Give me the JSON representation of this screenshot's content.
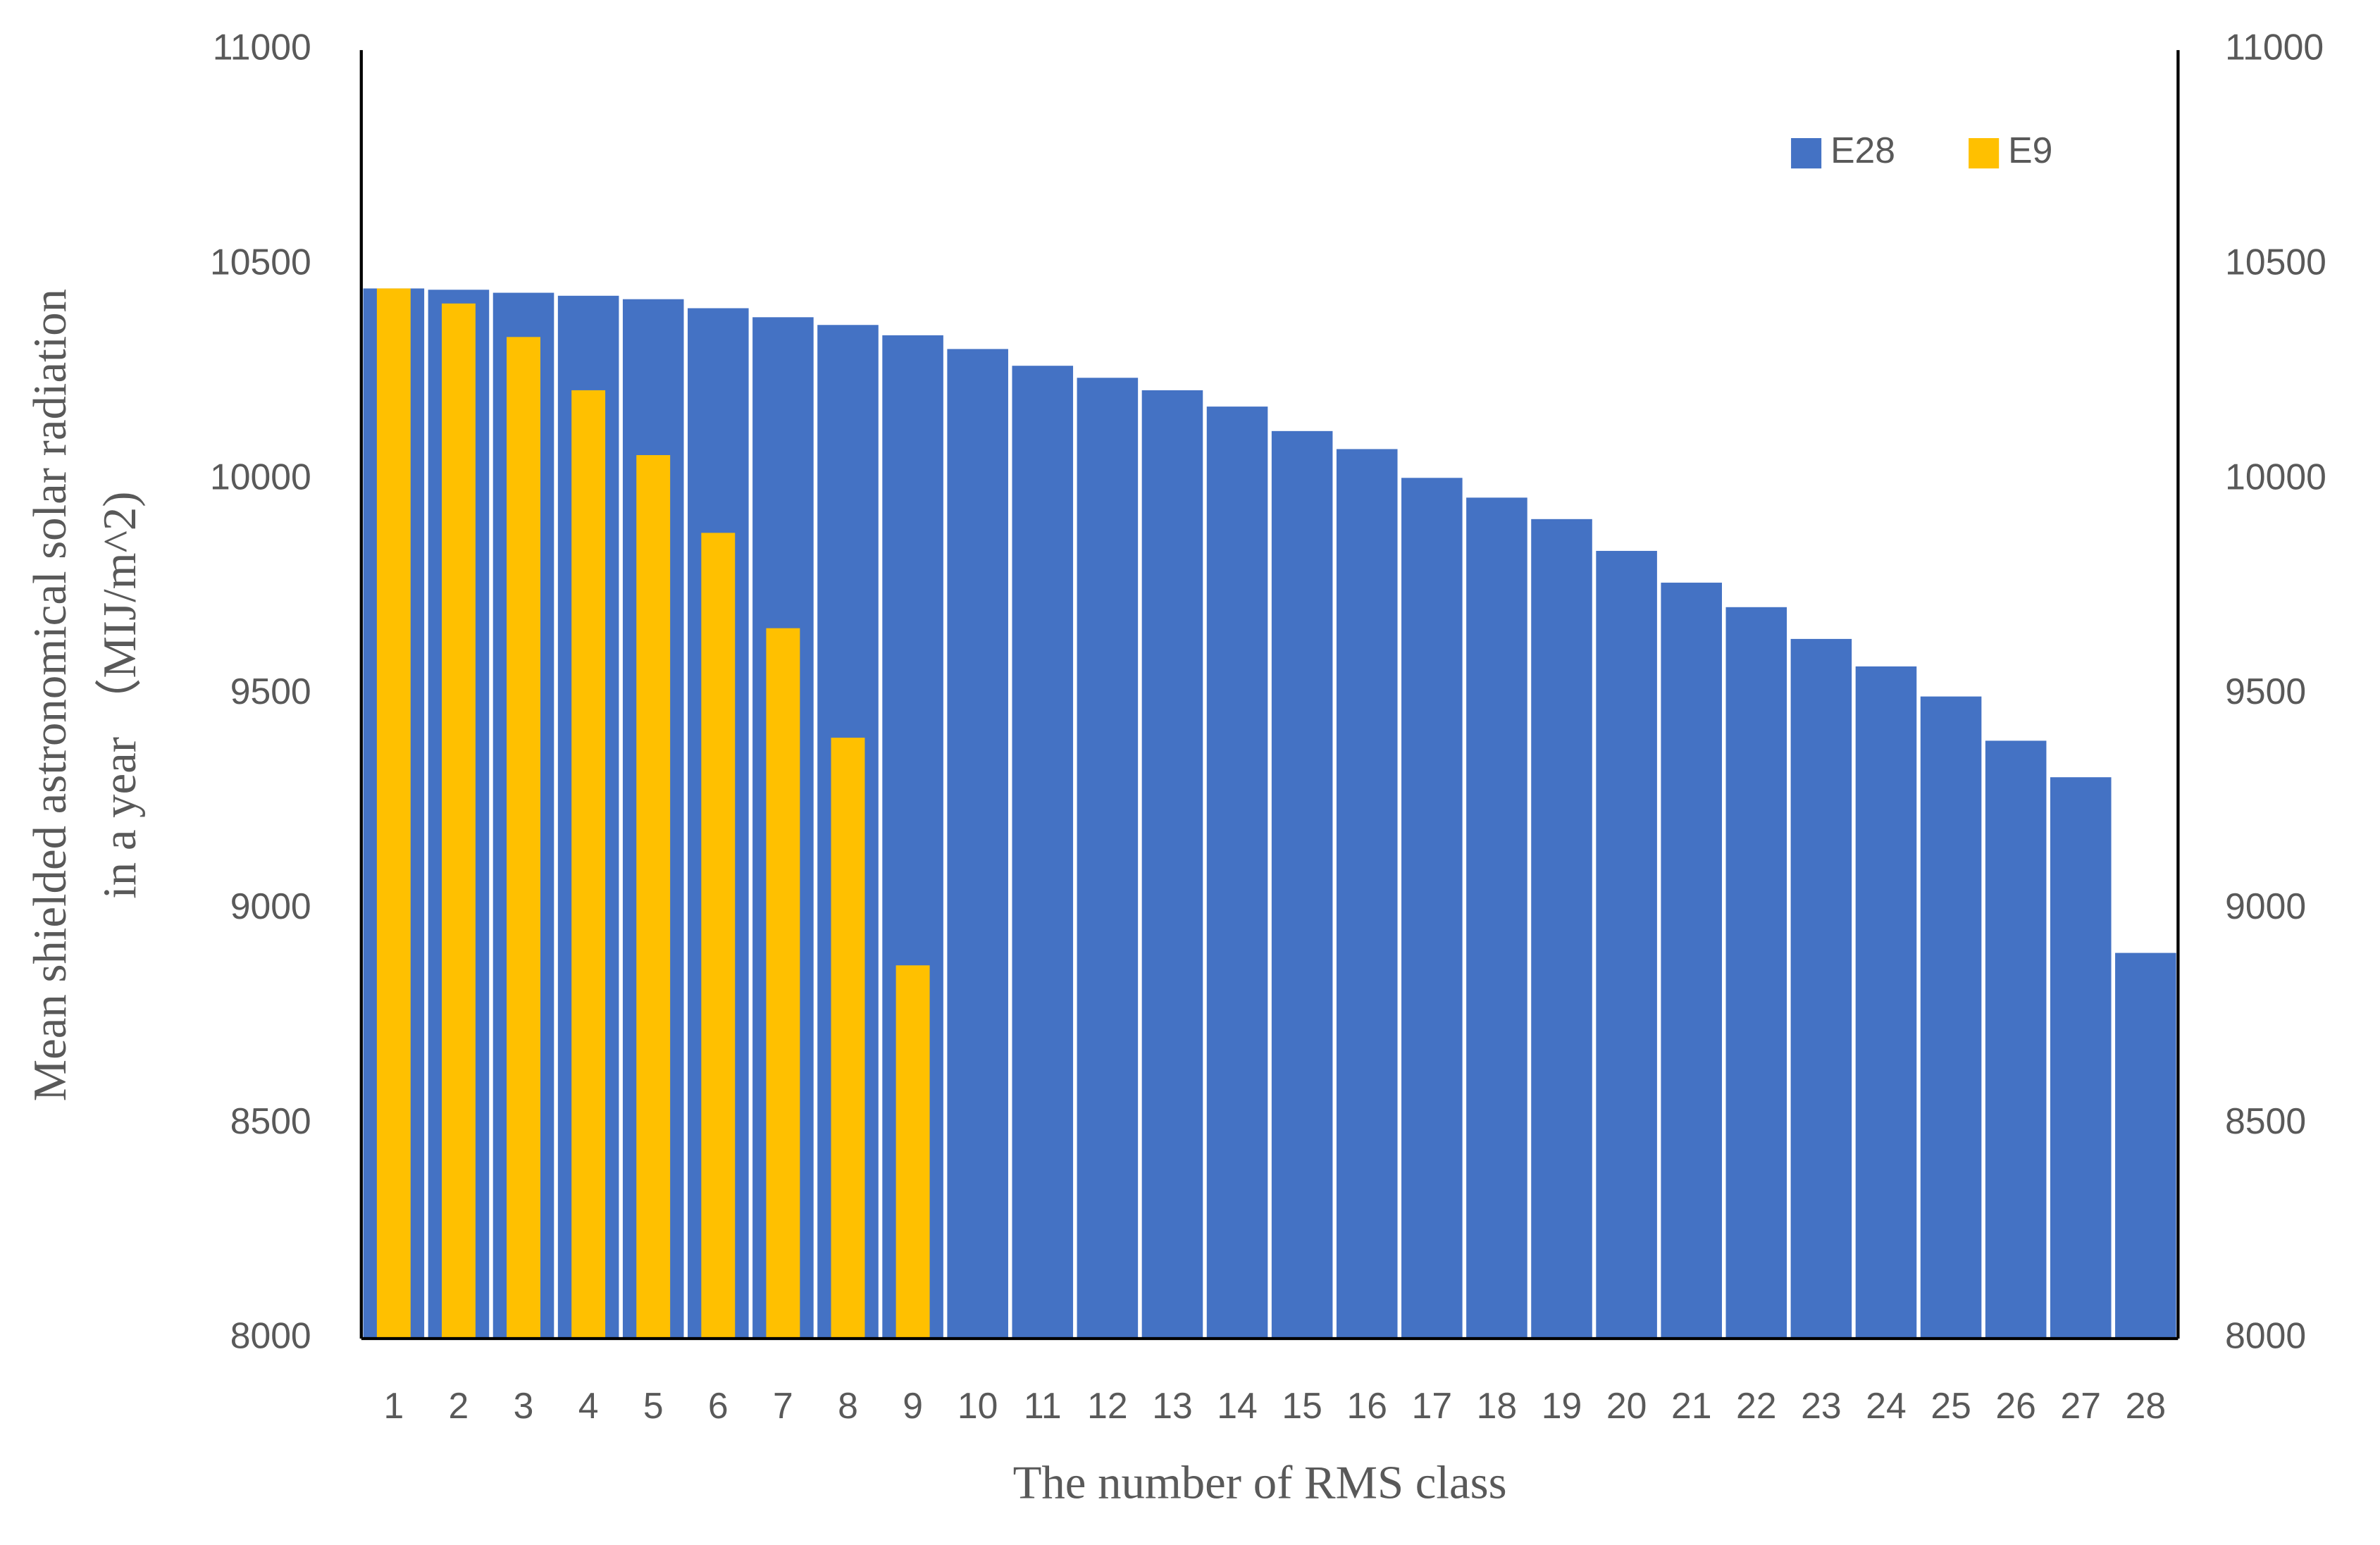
{
  "chart_data": {
    "type": "bar",
    "xlabel": "The number of RMS class",
    "ylabel": [
      "Mean shielded astronomical solar radiation",
      "in a year （MIJ/m^2)"
    ],
    "categories": [
      "1",
      "2",
      "3",
      "4",
      "5",
      "6",
      "7",
      "8",
      "9",
      "10",
      "11",
      "12",
      "13",
      "14",
      "15",
      "16",
      "17",
      "18",
      "19",
      "20",
      "21",
      "22",
      "23",
      "24",
      "25",
      "26",
      "27",
      "28"
    ],
    "series": [
      {
        "name": "E28",
        "color": "#4472c4",
        "values": [
          10445,
          10442,
          10435,
          10428,
          10420,
          10399,
          10378,
          10360,
          10336,
          10304,
          10265,
          10237,
          10208,
          10170,
          10113,
          10071,
          10004,
          9958,
          9908,
          9834,
          9760,
          9703,
          9629,
          9565,
          9495,
          9392,
          9307,
          8898
        ]
      },
      {
        "name": "E9",
        "color": "#ffc000",
        "values": [
          10445,
          10410,
          10332,
          10208,
          10057,
          9876,
          9654,
          9399,
          8869,
          null,
          null,
          null,
          null,
          null,
          null,
          null,
          null,
          null,
          null,
          null,
          null,
          null,
          null,
          null,
          null,
          null,
          null,
          null
        ]
      }
    ],
    "ylim": [
      8000,
      11000
    ],
    "yticks": [
      8000,
      8500,
      9000,
      9500,
      10000,
      10500,
      11000
    ],
    "y2lim": [
      8000,
      11000
    ],
    "y2ticks": [
      8000,
      8500,
      9000,
      9500,
      10000,
      10500,
      11000
    ],
    "grid": false,
    "legend": "upper right"
  }
}
